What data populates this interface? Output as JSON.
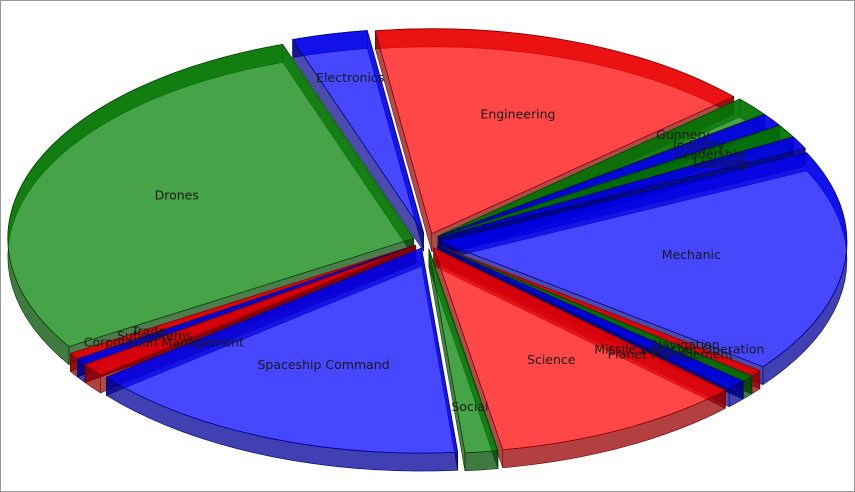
{
  "chart_data": {
    "type": "pie",
    "title": "",
    "slices": [
      {
        "label": "Engineering",
        "value": 15.5,
        "color": "#ff0000"
      },
      {
        "label": "Gunnery",
        "value": 1.5,
        "color": "#008000"
      },
      {
        "label": "Industry",
        "value": 1.0,
        "color": "#0000ff"
      },
      {
        "label": "Leadership",
        "value": 1.0,
        "color": "#008000"
      },
      {
        "label": "Learning",
        "value": 1.0,
        "color": "#0000ff"
      },
      {
        "label": "Mechanic",
        "value": 17.5,
        "color": "#0000ff"
      },
      {
        "label": "Navigation",
        "value": 0.5,
        "color": "#ff0000"
      },
      {
        "label": "Missile Launcher Operation",
        "value": 0.5,
        "color": "#008000"
      },
      {
        "label": "Planet Management",
        "value": 0.8,
        "color": "#0000ff"
      },
      {
        "label": "Science",
        "value": 10.0,
        "color": "#ff0000"
      },
      {
        "label": "Social",
        "value": 1.3,
        "color": "#008000"
      },
      {
        "label": "Spaceship Command",
        "value": 15.5,
        "color": "#0000ff"
      },
      {
        "label": "Corporation Management",
        "value": 1.0,
        "color": "#ff0000"
      },
      {
        "label": "Subsystems",
        "value": 0.5,
        "color": "#0000ff"
      },
      {
        "label": "Trade",
        "value": 0.5,
        "color": "#ff0000"
      },
      {
        "label": "Drones",
        "value": 28.5,
        "color": "#008000"
      },
      {
        "label": "Electronics",
        "value": 3.0,
        "color": "#0000ff"
      }
    ],
    "start_angle_deg": -98,
    "direction": "clockwise",
    "style": "3d-exploded",
    "legend": "none"
  }
}
